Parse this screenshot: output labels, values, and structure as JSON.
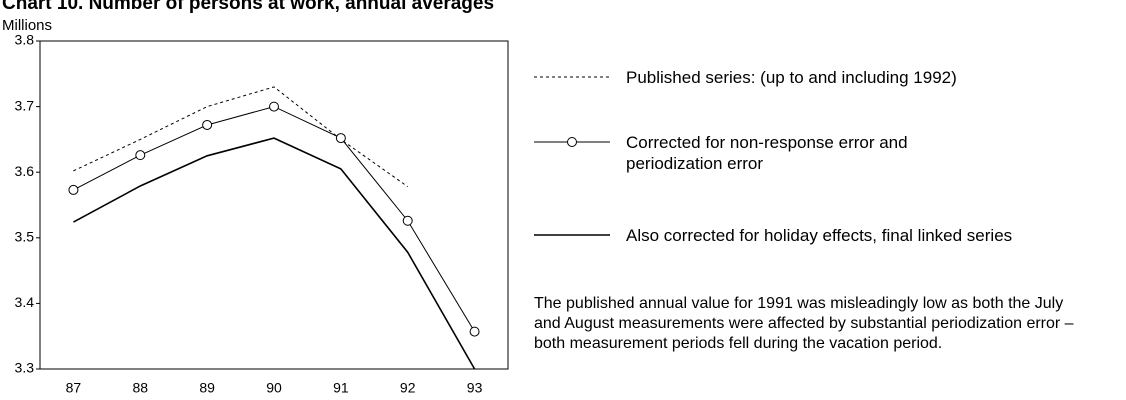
{
  "chart_data": {
    "type": "line",
    "title": "Chart 10. Number of persons at work, annual averages",
    "y_label": "Millions",
    "categories": [
      "87",
      "88",
      "89",
      "90",
      "91",
      "92",
      "93"
    ],
    "series": [
      {
        "name": "Published series: (up to and including 1992)",
        "color": "#000000",
        "style": "dotted",
        "values": [
          3.602,
          3.65,
          3.7,
          3.73,
          3.65,
          3.578,
          null
        ]
      },
      {
        "name": "Corrected for non-response error and periodization error",
        "color": "#000000",
        "style": "circles",
        "values": [
          3.573,
          3.626,
          3.672,
          3.7,
          3.652,
          3.526,
          3.357
        ]
      },
      {
        "name": "Also corrected for holiday effects, final linked series",
        "color": "#000000",
        "style": "solid",
        "values": [
          3.524,
          3.579,
          3.625,
          3.652,
          3.605,
          3.478,
          3.3
        ]
      }
    ],
    "ylim": [
      3.3,
      3.8
    ],
    "yticks": [
      3.3,
      3.4,
      3.5,
      3.6,
      3.7,
      3.8
    ],
    "note": "The published annual value for 1991 was misleadingly low as both the July and August measurements were affected by substantial periodization error – both measurement periods fell during the vacation period."
  }
}
